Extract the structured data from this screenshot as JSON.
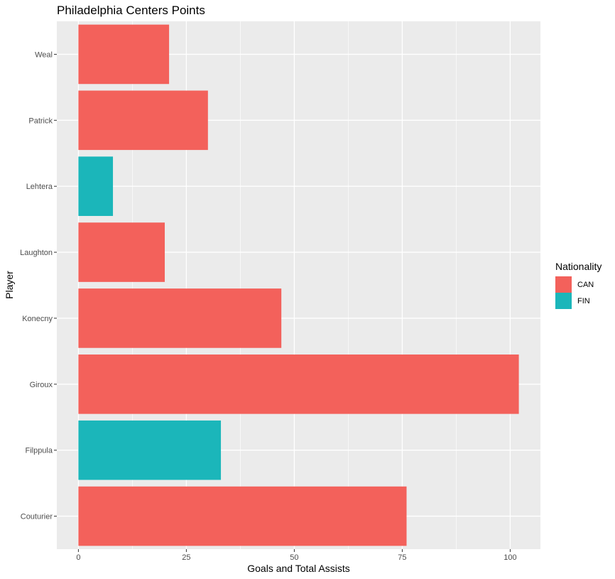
{
  "chart_data": {
    "type": "bar",
    "orientation": "horizontal",
    "title": "Philadelphia Centers Points",
    "xlabel": "Goals and Total Assists",
    "ylabel": "Player",
    "categories": [
      "Couturier",
      "Filppula",
      "Giroux",
      "Konecny",
      "Laughton",
      "Lehtera",
      "Patrick",
      "Weal"
    ],
    "values": [
      76,
      33,
      102,
      47,
      20,
      8,
      30,
      21
    ],
    "nationality": [
      "CAN",
      "FIN",
      "CAN",
      "CAN",
      "CAN",
      "FIN",
      "CAN",
      "CAN"
    ],
    "xlim": [
      -5,
      107
    ],
    "xticks": [
      "0",
      "25",
      "50",
      "75",
      "100"
    ],
    "grid": true,
    "legend": {
      "title": "Nationality",
      "placement": "right",
      "entries": [
        {
          "label": "CAN",
          "color": "#F8766D"
        },
        {
          "label": "FIN",
          "color": "#00BFC4"
        }
      ]
    }
  },
  "colors": {
    "panel_background": "#EBEBEB",
    "gridline": "#FFFFFF",
    "CAN": "#F3615B",
    "FIN": "#1BB6BA"
  }
}
